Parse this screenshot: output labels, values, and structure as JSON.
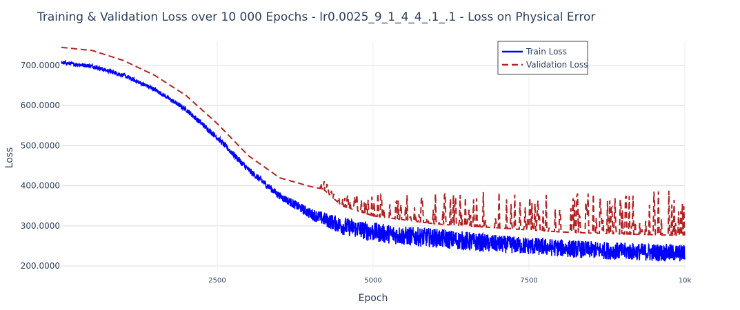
{
  "chart_data": {
    "type": "line",
    "title": "Training & Validation Loss over 10 000 Epochs - lr0.0025_9_1_4_4_.1_.1 - Loss on Physical Error",
    "xlabel": "Epoch",
    "ylabel": "Loss",
    "xlim": [
      0,
      10000
    ],
    "ylim": [
      190,
      760
    ],
    "x_ticks": [
      2500,
      5000,
      7500,
      10000
    ],
    "x_tick_labels": [
      "2500",
      "5000",
      "7500",
      "10k"
    ],
    "y_ticks": [
      200,
      300,
      400,
      500,
      600,
      700
    ],
    "y_tick_labels": [
      "200.0000",
      "300.0000",
      "400.0000",
      "500.0000",
      "600.0000",
      "700.0000"
    ],
    "grid": true,
    "legend_position": "top-right",
    "series": [
      {
        "name": "Train Loss",
        "color": "#0000ff",
        "style": "solid",
        "x": [
          0,
          500,
          1000,
          1500,
          2000,
          2500,
          3000,
          3500,
          4000,
          4500,
          5000,
          5500,
          6000,
          6500,
          7000,
          7500,
          8000,
          8500,
          9000,
          9500,
          10000
        ],
        "y": [
          707,
          698,
          675,
          640,
          590,
          520,
          440,
          375,
          330,
          300,
          285,
          275,
          270,
          262,
          255,
          250,
          245,
          240,
          237,
          234,
          232
        ],
        "noise_band": [
          5,
          5,
          5,
          5,
          6,
          7,
          8,
          9,
          14,
          22,
          24,
          24,
          24,
          24,
          22,
          22,
          22,
          22,
          22,
          22,
          22
        ]
      },
      {
        "name": "Validation Loss",
        "color": "#b22222",
        "style": "dashed",
        "x": [
          0,
          500,
          1000,
          1500,
          2000,
          2500,
          3000,
          3500,
          4000,
          4200,
          4500,
          5000,
          5500,
          6000,
          6500,
          7000,
          7500,
          8000,
          8500,
          9000,
          9500,
          10000
        ],
        "y": [
          745,
          737,
          712,
          675,
          625,
          555,
          475,
          420,
          398,
          392,
          350,
          325,
          315,
          305,
          300,
          295,
          290,
          285,
          282,
          280,
          278,
          276
        ],
        "spike_top": [
          745,
          737,
          712,
          675,
          625,
          555,
          475,
          420,
          410,
          415,
          390,
          385,
          385,
          385,
          385,
          385,
          385,
          385,
          385,
          385,
          390,
          390
        ]
      }
    ]
  }
}
